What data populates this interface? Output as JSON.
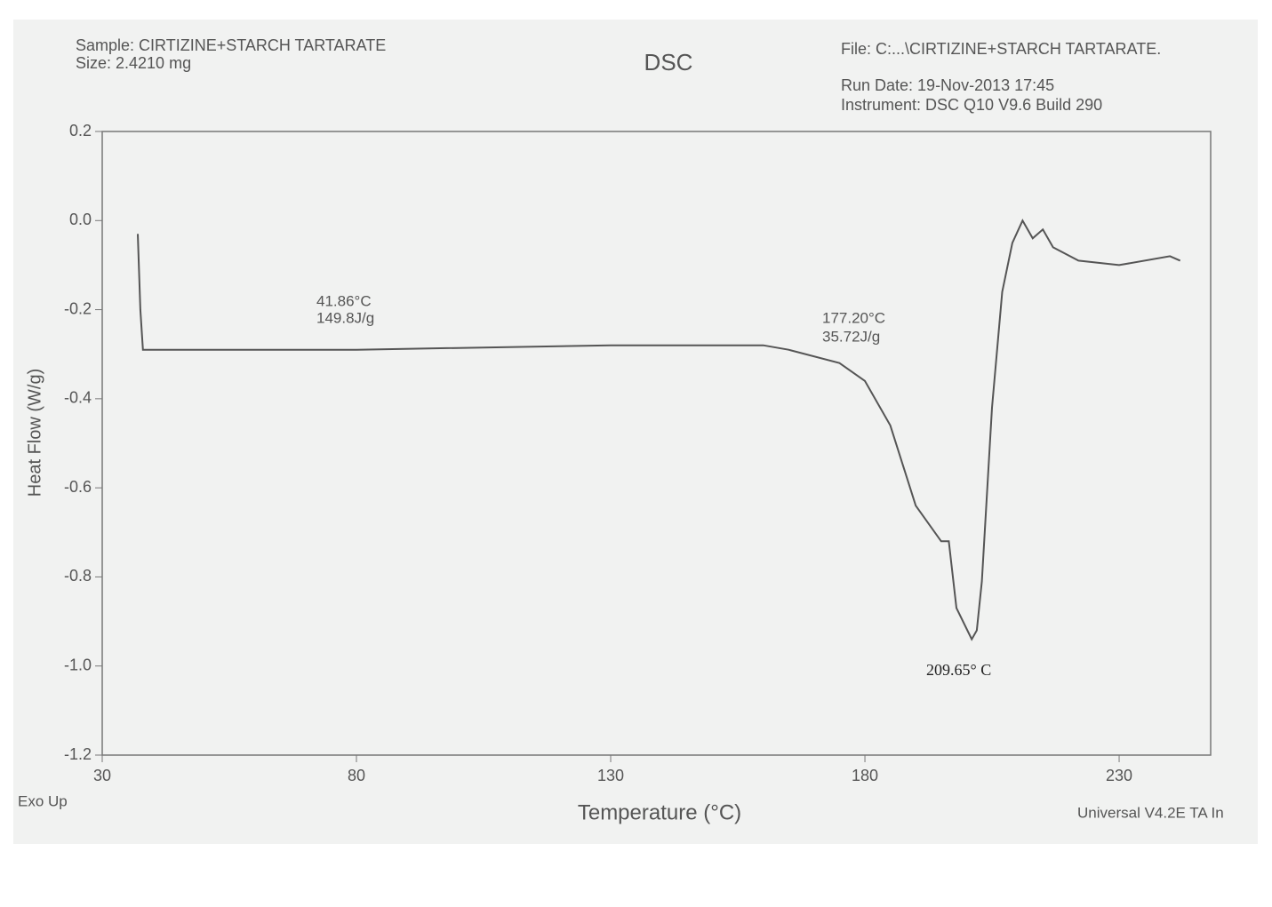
{
  "chart_data": {
    "type": "line",
    "title": "DSC",
    "sample": "Sample: CIRTIZINE+STARCH TARTARATE",
    "size": "Size: 2.4210 mg",
    "file": "File: C:...\\CIRTIZINE+STARCH TARTARATE.",
    "run_date": "Run Date: 19-Nov-2013 17:45",
    "instrument": "Instrument: DSC Q10 V9.6 Build 290",
    "xlabel": "Temperature (°C)",
    "ylabel": "Heat Flow (W/g)",
    "exo": "Exo Up",
    "software": "Universal V4.2E TA In",
    "annotations": [
      "41.86°C",
      "149.8J/g",
      "177.20°C",
      "35.72J/g",
      "209.65° C"
    ],
    "xlim": [
      30,
      248
    ],
    "xticks": [
      30,
      80,
      130,
      180,
      230
    ],
    "ylim": [
      -1.2,
      0.2
    ],
    "yticks": [
      0.2,
      {
        "value": 0,
        "label": "0.0"
      },
      -0.2,
      -0.4,
      -0.6,
      -0.8,
      {
        "value": -1,
        "label": "-1.0"
      },
      -1.2
    ],
    "series": [
      {
        "color": "#555555",
        "x": [
          37,
          37.5,
          38,
          50,
          80,
          130,
          160,
          165,
          175,
          180,
          185,
          190,
          195,
          196.5,
          198,
          201,
          202,
          203,
          205,
          207,
          209,
          211,
          213,
          215,
          217,
          222,
          230,
          240,
          242
        ],
        "values": [
          -0.03,
          -0.2,
          -0.29,
          -0.29,
          -0.29,
          -0.28,
          -0.28,
          -0.29,
          -0.32,
          -0.36,
          -0.46,
          -0.64,
          -0.72,
          -0.72,
          -0.87,
          -0.94,
          -0.92,
          -0.81,
          -0.42,
          -0.16,
          -0.05,
          0.0,
          -0.04,
          -0.02,
          -0.06,
          -0.09,
          -0.1,
          -0.08,
          -0.09
        ]
      }
    ]
  }
}
